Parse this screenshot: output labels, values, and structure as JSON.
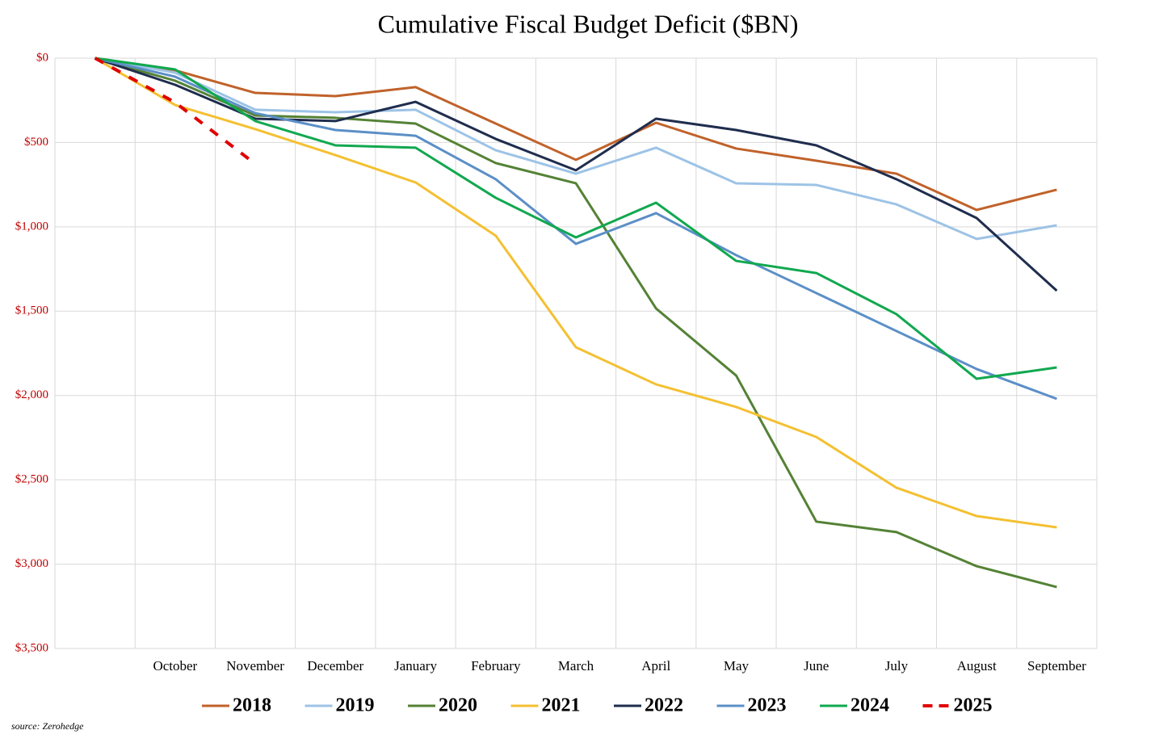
{
  "chart_data": {
    "type": "line",
    "title": "Cumulative Fiscal Budget Deficit ($BN)",
    "source": "source: Zerohedge",
    "categories": [
      null,
      "October",
      "November",
      "December",
      "January",
      "February",
      "March",
      "April",
      "May",
      "June",
      "July",
      "August",
      "September"
    ],
    "ylim": [
      0,
      3500
    ],
    "y_reversed": true,
    "yticks": [
      {
        "value": 0,
        "label": "$0"
      },
      {
        "value": 500,
        "label": "$500"
      },
      {
        "value": 1000,
        "label": "$1,000"
      },
      {
        "value": 1500,
        "label": "$1,500"
      },
      {
        "value": 2000,
        "label": "$2,000"
      },
      {
        "value": 2500,
        "label": "$2,500"
      },
      {
        "value": 3000,
        "label": "$3,000"
      },
      {
        "value": 3500,
        "label": "$3,500"
      }
    ],
    "grid": true,
    "legend": "bottom",
    "series": [
      {
        "name": "2018",
        "color": "#c0622a",
        "values": [
          0,
          72,
          206,
          225,
          172,
          388,
          603,
          383,
          536,
          608,
          685,
          900,
          780
        ]
      },
      {
        "name": "2019",
        "color": "#9dc3e6",
        "values": [
          0,
          86,
          306,
          321,
          306,
          546,
          685,
          531,
          742,
          752,
          867,
          1072,
          991
        ]
      },
      {
        "name": "2020",
        "color": "#548235",
        "values": [
          0,
          134,
          340,
          354,
          388,
          622,
          742,
          1484,
          1882,
          2748,
          2810,
          3012,
          3136
        ]
      },
      {
        "name": "2021",
        "color": "#f4c032",
        "values": [
          0,
          278,
          421,
          575,
          737,
          1053,
          1714,
          1934,
          2068,
          2246,
          2547,
          2715,
          2782
        ]
      },
      {
        "name": "2022",
        "color": "#1f2d4e",
        "values": [
          0,
          158,
          359,
          373,
          259,
          479,
          665,
          359,
          426,
          517,
          718,
          948,
          1379
        ]
      },
      {
        "name": "2023",
        "color": "#5b8fc7",
        "values": [
          0,
          110,
          326,
          426,
          460,
          718,
          1101,
          919,
          1168,
          1393,
          1618,
          1843,
          2020
        ]
      },
      {
        "name": "2024",
        "color": "#11a84f",
        "values": [
          0,
          67,
          373,
          517,
          531,
          828,
          1063,
          857,
          1202,
          1274,
          1518,
          1901,
          1834
        ]
      },
      {
        "name": "2025",
        "color": "#e00000",
        "style": "dashed",
        "values": [
          0,
          263,
          627,
          null,
          null,
          null,
          null,
          null,
          null,
          null,
          null,
          null,
          null
        ]
      }
    ]
  }
}
